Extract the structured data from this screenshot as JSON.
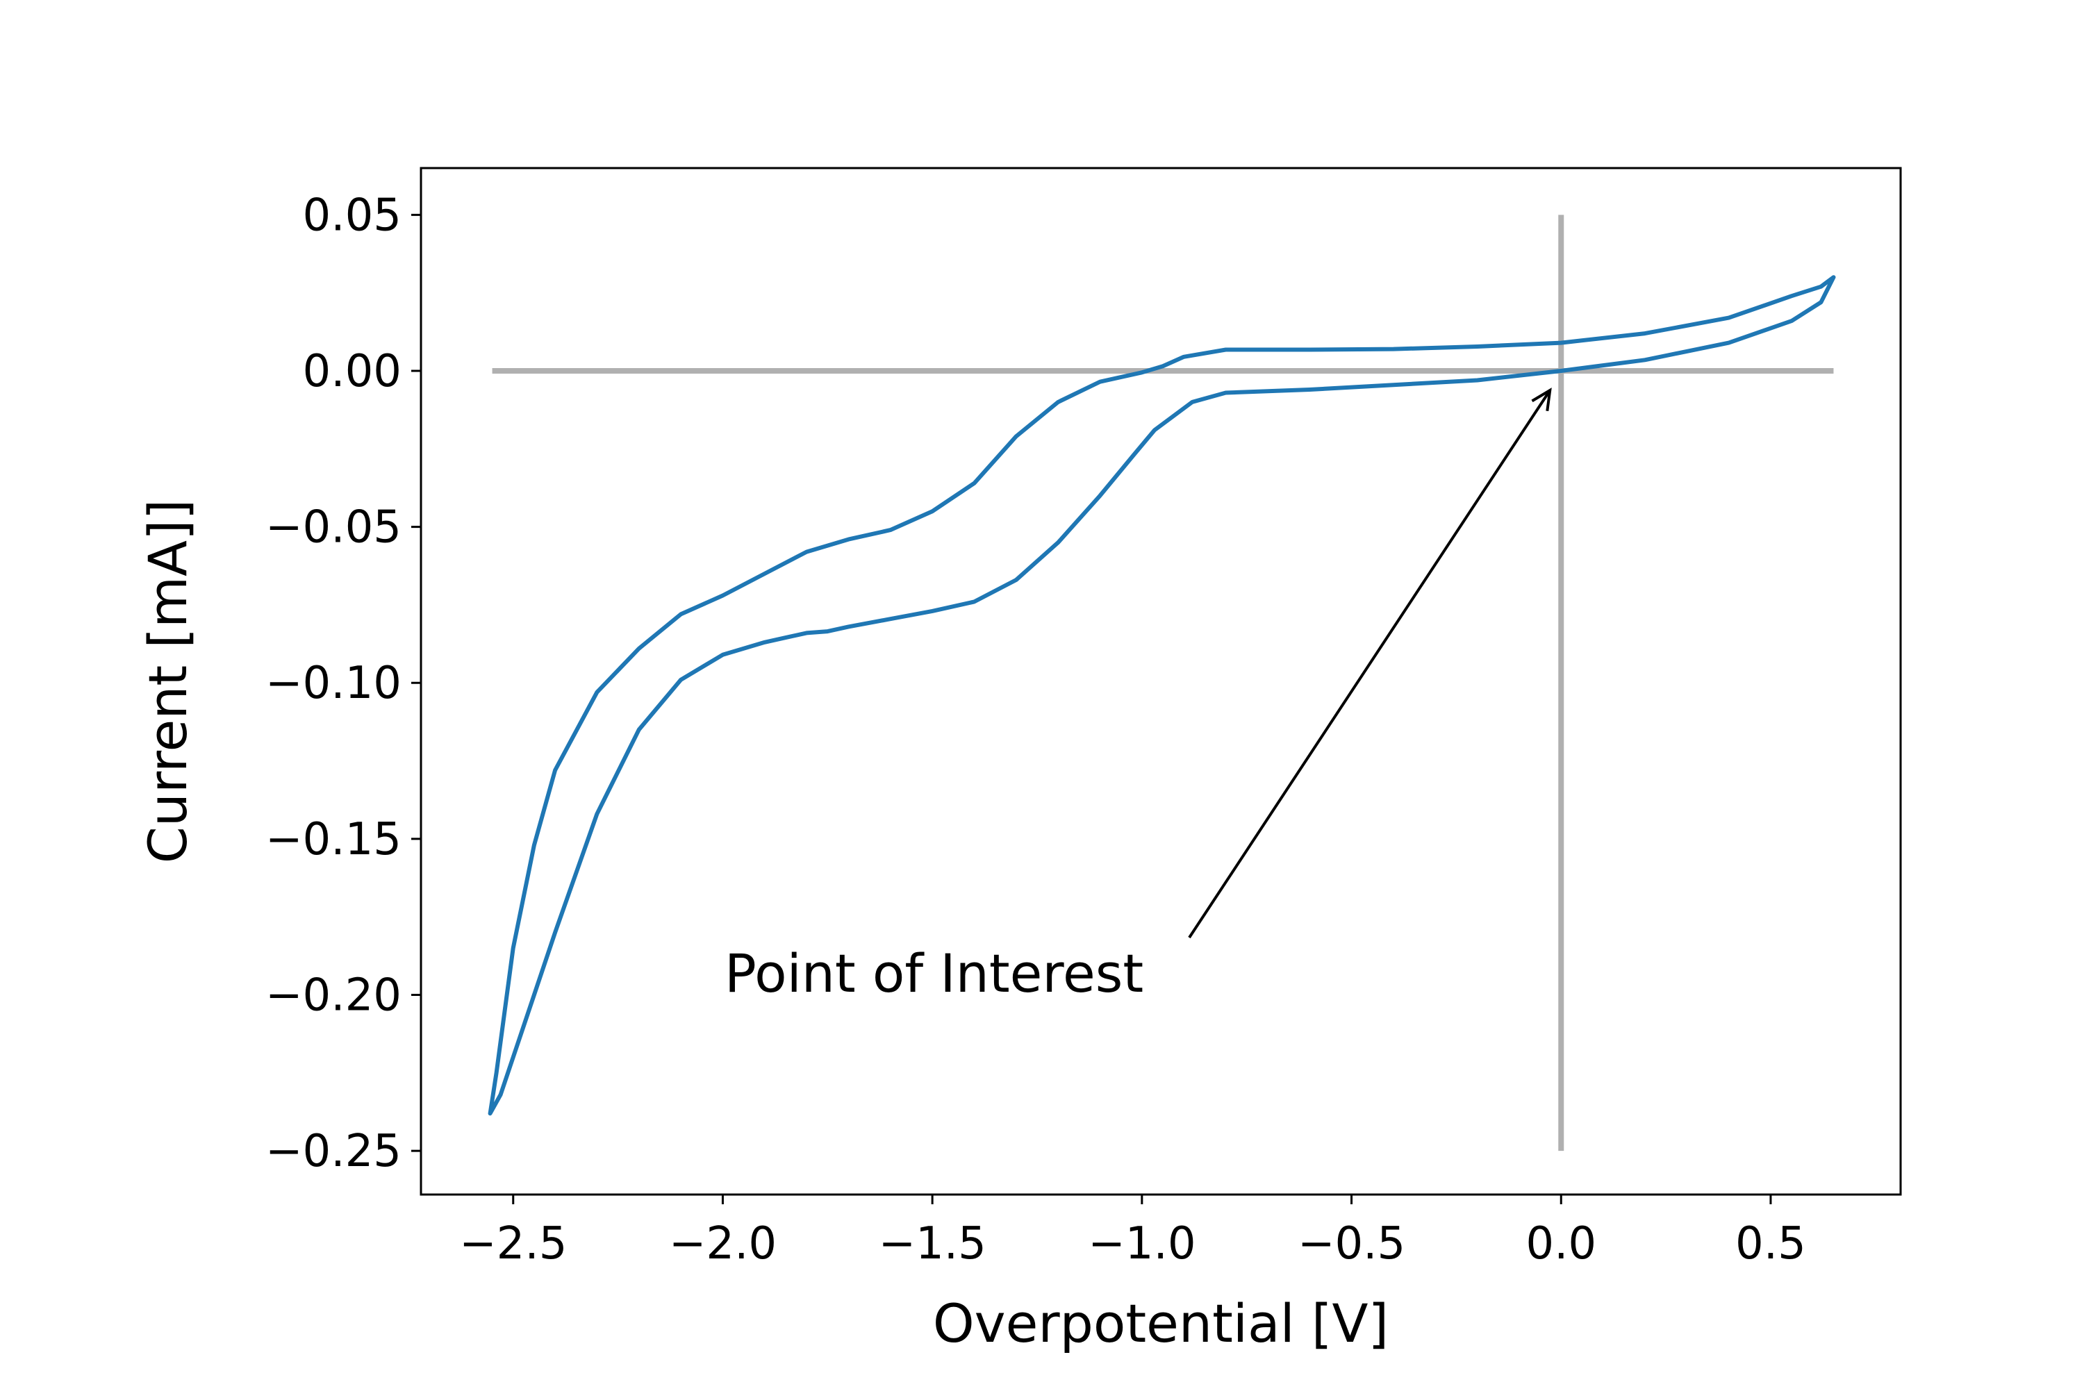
{
  "chart_data": {
    "type": "line",
    "title": "",
    "xlabel": "Overpotential [V]",
    "ylabel": "Current [mA]]",
    "xlim": [
      -2.72,
      0.81
    ],
    "ylim": [
      -0.264,
      0.065
    ],
    "grid": false,
    "legend": "none",
    "colors": {
      "series": "#1f77b4",
      "reference_lines": "#b0b0b0",
      "annotation": "#000000"
    },
    "xticks": [
      {
        "value": -2.5,
        "label": "−2.5"
      },
      {
        "value": -2.0,
        "label": "−2.0"
      },
      {
        "value": -1.5,
        "label": "−1.5"
      },
      {
        "value": -1.0,
        "label": "−1.0"
      },
      {
        "value": -0.5,
        "label": "−0.5"
      },
      {
        "value": 0.0,
        "label": "0.0"
      },
      {
        "value": 0.5,
        "label": "0.5"
      }
    ],
    "yticks": [
      {
        "value": 0.05,
        "label": "0.05"
      },
      {
        "value": 0.0,
        "label": "0.00"
      },
      {
        "value": -0.05,
        "label": "−0.05"
      },
      {
        "value": -0.1,
        "label": "−0.10"
      },
      {
        "value": -0.15,
        "label": "−0.15"
      },
      {
        "value": -0.2,
        "label": "−0.20"
      },
      {
        "value": -0.25,
        "label": "−0.25"
      }
    ],
    "reference_lines": {
      "horizontal": {
        "y": 0.0,
        "x_from": -2.55,
        "x_to": 0.65
      },
      "vertical": {
        "x": 0.0,
        "y_from": -0.25,
        "y_to": 0.05
      }
    },
    "annotation": {
      "text": "Point of Interest",
      "point": [
        0.0,
        0.0
      ],
      "text_position": [
        -2.0,
        -0.2
      ]
    },
    "series": [
      {
        "x": [
          0.65,
          0.62,
          0.55,
          0.4,
          0.2,
          0.0,
          -0.2,
          -0.4,
          -0.6,
          -0.8,
          -0.88,
          -0.93,
          -0.97,
          -1.02,
          -1.1,
          -1.2,
          -1.3,
          -1.4,
          -1.5,
          -1.6,
          -1.7,
          -1.75,
          -1.8,
          -1.85,
          -1.9,
          -2.0,
          -2.1,
          -2.2,
          -2.3,
          -2.4,
          -2.45,
          -2.5,
          -2.53,
          -2.555,
          -2.54,
          -2.5,
          -2.45,
          -2.4,
          -2.3,
          -2.2,
          -2.1,
          -2.0,
          -1.9,
          -1.8,
          -1.7,
          -1.6,
          -1.5,
          -1.4,
          -1.3,
          -1.2,
          -1.1,
          -1.0,
          -0.95,
          -0.9,
          -0.8,
          -0.6,
          -0.4,
          -0.2,
          0.0,
          0.2,
          0.4,
          0.55,
          0.62,
          0.65
        ],
        "y": [
          0.03,
          0.022,
          0.016,
          0.009,
          0.0035,
          0.0,
          -0.003,
          -0.0045,
          -0.006,
          -0.007,
          -0.01,
          -0.015,
          -0.019,
          -0.027,
          -0.04,
          -0.055,
          -0.067,
          -0.074,
          -0.077,
          -0.0795,
          -0.082,
          -0.0835,
          -0.084,
          -0.0855,
          -0.087,
          -0.091,
          -0.099,
          -0.115,
          -0.142,
          -0.18,
          -0.2,
          -0.22,
          -0.232,
          -0.238,
          -0.225,
          -0.185,
          -0.152,
          -0.128,
          -0.103,
          -0.089,
          -0.078,
          -0.072,
          -0.065,
          -0.058,
          -0.054,
          -0.051,
          -0.045,
          -0.036,
          -0.021,
          -0.01,
          -0.0035,
          -0.0005,
          0.0015,
          0.0045,
          0.0068,
          0.0068,
          0.007,
          0.0078,
          0.009,
          0.012,
          0.017,
          0.024,
          0.027,
          0.03
        ]
      }
    ]
  }
}
